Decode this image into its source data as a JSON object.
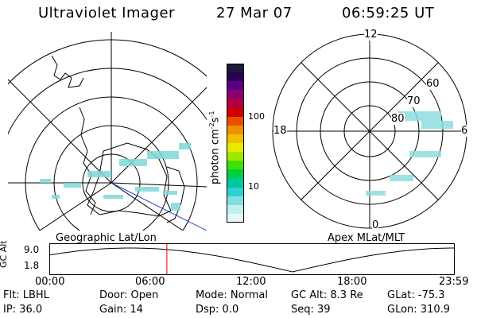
{
  "header": {
    "instrument": "Ultraviolet Imager",
    "date": "27 Mar 07",
    "time": "06:59:25 UT"
  },
  "left_panel": {
    "caption": "Geographic Lat/Lon"
  },
  "right_panel": {
    "caption": "Apex MLat/MLT",
    "mlt_labels": [
      "12",
      "18",
      "6",
      "0"
    ],
    "lat_labels": [
      "60",
      "70",
      "80"
    ]
  },
  "colorbar": {
    "ylabel": "photon cm",
    "ylabel_exp": "-2",
    "ylabel_unit": "s",
    "ylabel_exp2": "-1",
    "ticks": [
      "100",
      "10"
    ],
    "colors": [
      "#1a1a3a",
      "#2a0050",
      "#5a0080",
      "#8a0070",
      "#b00040",
      "#d00000",
      "#e85000",
      "#f09000",
      "#f0c000",
      "#e8e800",
      "#a0e800",
      "#40e000",
      "#00d040",
      "#00c8a0",
      "#30d0d0",
      "#80e0e0",
      "#c0f0f0",
      "#e8f8f8"
    ]
  },
  "altitude_plot": {
    "ylabel": "GC Alt",
    "yticks": [
      "9.0",
      "1.8"
    ],
    "xticks": [
      "00:00",
      "06:00",
      "12:00",
      "18:00",
      "23:59"
    ],
    "current_time_fraction": 0.29
  },
  "footer": {
    "filter": "Flt: LBHL",
    "door": "Door: Open",
    "mode": "Mode: Normal",
    "gc_alt": "GC Alt: 8.3 Re",
    "glat": "GLat: -75.3",
    "ip": "IP: 36.0",
    "gain": "Gain: 14",
    "dsp": "Dsp:    0.0",
    "seq": "Seq: 39",
    "glon": "GLon: 310.9"
  }
}
